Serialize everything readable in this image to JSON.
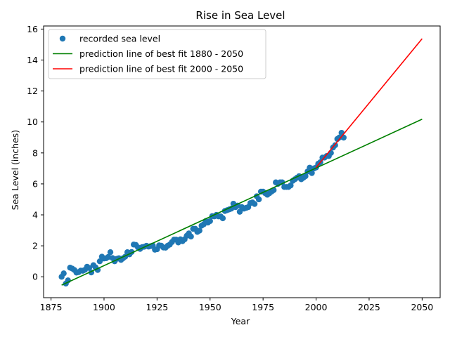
{
  "chart_data": {
    "type": "scatter",
    "title": "Rise in Sea Level",
    "xlabel": "Year",
    "ylabel": "Sea Level (inches)",
    "xlim": [
      1871.5,
      2058.5
    ],
    "ylim": [
      -1.35,
      16.2
    ],
    "xticks": [
      1875,
      1900,
      1925,
      1950,
      1975,
      2000,
      2025,
      2050
    ],
    "yticks": [
      0,
      2,
      4,
      6,
      8,
      10,
      12,
      14,
      16
    ],
    "grid": false,
    "legend_position": "top-left",
    "colors": {
      "scatter": "#1f77b4",
      "fit_all": "#008000",
      "fit_recent": "#ff0000"
    },
    "series": [
      {
        "name": "recorded sea level",
        "kind": "scatter",
        "x": [
          1880,
          1881,
          1882,
          1883,
          1884,
          1885,
          1886,
          1887,
          1888,
          1889,
          1890,
          1891,
          1892,
          1893,
          1894,
          1895,
          1896,
          1897,
          1898,
          1899,
          1900,
          1901,
          1902,
          1903,
          1904,
          1905,
          1906,
          1907,
          1908,
          1909,
          1910,
          1911,
          1912,
          1913,
          1914,
          1915,
          1916,
          1917,
          1918,
          1919,
          1920,
          1921,
          1922,
          1923,
          1924,
          1925,
          1926,
          1927,
          1928,
          1929,
          1930,
          1931,
          1932,
          1933,
          1934,
          1935,
          1936,
          1937,
          1938,
          1939,
          1940,
          1941,
          1942,
          1943,
          1944,
          1945,
          1946,
          1947,
          1948,
          1949,
          1950,
          1951,
          1952,
          1953,
          1954,
          1955,
          1956,
          1957,
          1958,
          1959,
          1960,
          1961,
          1962,
          1963,
          1964,
          1965,
          1966,
          1967,
          1968,
          1969,
          1970,
          1971,
          1972,
          1973,
          1974,
          1975,
          1976,
          1977,
          1978,
          1979,
          1980,
          1981,
          1982,
          1983,
          1984,
          1985,
          1986,
          1987,
          1988,
          1989,
          1990,
          1991,
          1992,
          1993,
          1994,
          1995,
          1996,
          1997,
          1998,
          1999,
          2000,
          2001,
          2002,
          2003,
          2004,
          2005,
          2006,
          2007,
          2008,
          2009,
          2010,
          2011,
          2012,
          2013
        ],
        "y": [
          0.0,
          0.22,
          -0.44,
          -0.23,
          0.59,
          0.53,
          0.44,
          0.27,
          0.3,
          0.4,
          0.39,
          0.45,
          0.65,
          0.57,
          0.28,
          0.75,
          0.61,
          0.44,
          1.0,
          1.3,
          1.18,
          1.2,
          1.28,
          1.59,
          1.21,
          1.0,
          1.16,
          1.2,
          1.09,
          1.2,
          1.3,
          1.59,
          1.45,
          1.6,
          2.08,
          2.06,
          1.9,
          1.8,
          1.92,
          1.94,
          2.0,
          1.95,
          1.98,
          2.02,
          1.75,
          1.78,
          2.03,
          2.01,
          1.89,
          1.88,
          2.0,
          2.08,
          2.24,
          2.4,
          2.4,
          2.22,
          2.42,
          2.3,
          2.42,
          2.65,
          2.8,
          2.6,
          3.1,
          3.1,
          2.9,
          2.98,
          3.3,
          3.39,
          3.6,
          3.5,
          3.6,
          3.92,
          3.9,
          4.0,
          3.9,
          3.9,
          3.78,
          4.25,
          4.3,
          4.35,
          4.4,
          4.72,
          4.5,
          4.6,
          4.2,
          4.5,
          4.4,
          4.45,
          4.5,
          4.76,
          4.8,
          4.7,
          5.2,
          5.0,
          5.5,
          5.5,
          5.4,
          5.3,
          5.4,
          5.5,
          5.6,
          6.1,
          6.0,
          6.1,
          6.1,
          5.8,
          5.8,
          5.8,
          5.9,
          6.2,
          6.3,
          6.4,
          6.5,
          6.3,
          6.4,
          6.5,
          6.8,
          7.05,
          6.7,
          7.0,
          7.06,
          7.3,
          7.4,
          7.7,
          7.7,
          7.8,
          7.8,
          8.0,
          8.35,
          8.5,
          8.9,
          9.0,
          9.3,
          8.99
        ]
      },
      {
        "name": "prediction line of best fit 1880 - 2050",
        "kind": "line",
        "x": [
          1880,
          2050
        ],
        "y": [
          -0.54,
          10.18
        ]
      },
      {
        "name": "prediction line of best fit 2000 - 2050",
        "kind": "line",
        "x": [
          2000,
          2050
        ],
        "y": [
          7.06,
          15.38
        ]
      }
    ]
  }
}
